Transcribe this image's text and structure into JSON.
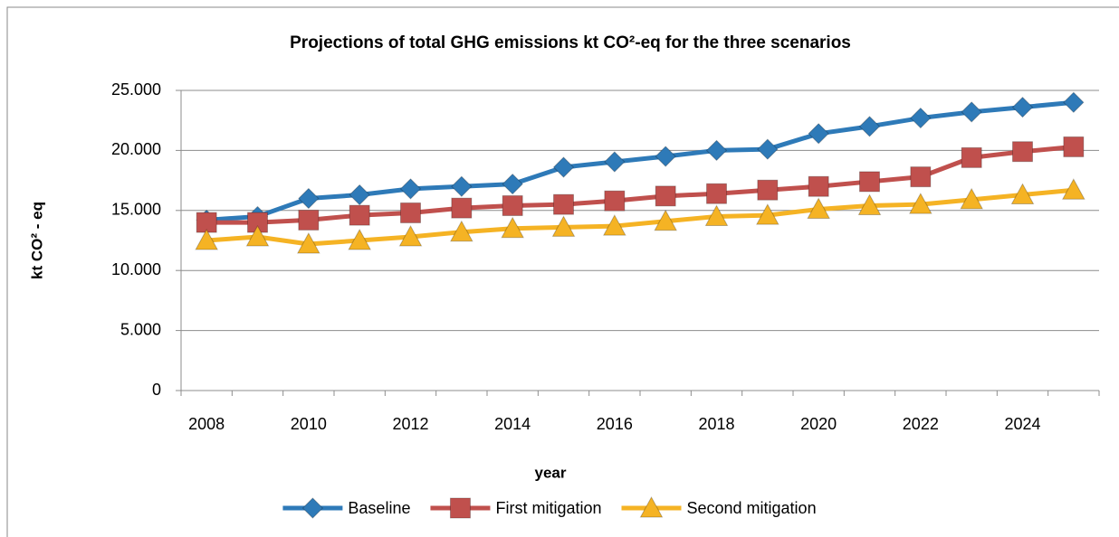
{
  "chart_data": {
    "type": "line",
    "title": "Projections of total GHG emissions kt CO²-eq  for the three scenarios",
    "x_label": "year",
    "y_label": "kt CO² - eq",
    "categories": [
      "2008",
      null,
      "2010",
      null,
      "2012",
      null,
      "2014",
      null,
      "2016",
      null,
      "2018",
      null,
      "2020",
      null,
      "2022",
      null,
      "2024",
      null
    ],
    "series": [
      {
        "name": "Baseline",
        "color": "#2e7ab8",
        "marker": "diamond",
        "values": [
          14200,
          14500,
          16000,
          16300,
          16800,
          17000,
          17200,
          18600,
          19050,
          19500,
          20000,
          20100,
          21400,
          22000,
          22700,
          23200,
          23600,
          24000
        ]
      },
      {
        "name": "First mitigation",
        "color": "#c0504d",
        "marker": "square",
        "values": [
          14000,
          14000,
          14200,
          14600,
          14800,
          15200,
          15400,
          15500,
          15800,
          16200,
          16400,
          16700,
          17000,
          17400,
          17800,
          19400,
          19900,
          20300
        ]
      },
      {
        "name": "Second mitigation",
        "color": "#f5b324",
        "marker": "triangle",
        "values": [
          12500,
          12800,
          12200,
          12500,
          12800,
          13200,
          13500,
          13600,
          13700,
          14100,
          14500,
          14600,
          15100,
          15400,
          15500,
          15900,
          16300,
          16700
        ]
      }
    ],
    "ylim": [
      0,
      25000
    ],
    "yticks": [
      0,
      {
        "value": 5000,
        "label": "5.000"
      },
      {
        "value": 10000,
        "label": "10.000"
      },
      {
        "value": 15000,
        "label": "15.000"
      },
      {
        "value": 20000,
        "label": "20.000"
      },
      {
        "value": 25000,
        "label": "25.000"
      }
    ],
    "grid": true,
    "legend": "bottom"
  }
}
